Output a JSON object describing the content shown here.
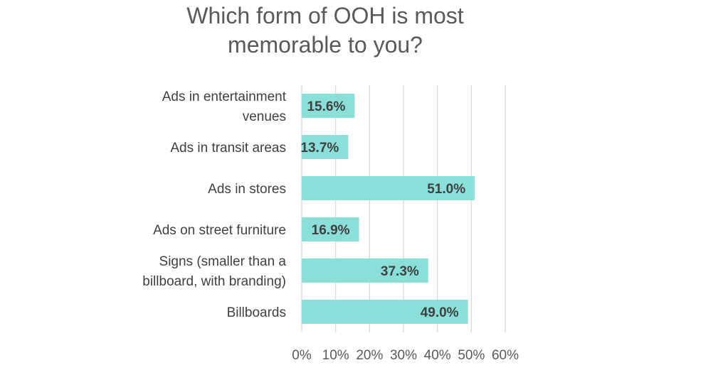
{
  "chart_data": {
    "type": "bar",
    "orientation": "horizontal",
    "title_lines": [
      "Which form of OOH is most",
      "memorable to you?"
    ],
    "categories": [
      [
        "Ads in entertainment",
        "venues"
      ],
      [
        "Ads in transit areas"
      ],
      [
        "Ads in stores"
      ],
      [
        "Ads on street furniture"
      ],
      [
        "Signs (smaller than a",
        "billboard, with branding)"
      ],
      [
        "Billboards"
      ]
    ],
    "values": [
      15.6,
      13.7,
      51.0,
      16.9,
      37.3,
      49.0
    ],
    "value_labels": [
      "15.6%",
      "13.7%",
      "51.0%",
      "16.9%",
      "37.3%",
      "49.0%"
    ],
    "xlim": [
      0,
      60
    ],
    "x_ticks": [
      0,
      10,
      20,
      30,
      40,
      50,
      60
    ],
    "x_tick_labels": [
      "0%",
      "10%",
      "20%",
      "30%",
      "40%",
      "50%",
      "60%"
    ],
    "grid": true,
    "legend": "none",
    "bar_color": "#8ADFD9"
  }
}
